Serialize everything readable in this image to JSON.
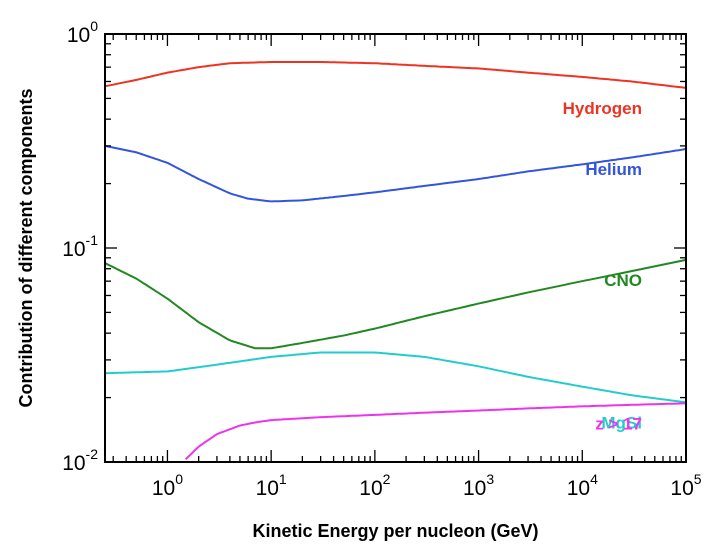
{
  "chart_data": {
    "type": "line",
    "title": "",
    "xlabel": "Kinetic Energy per nucleon (GeV)",
    "ylabel": "Contribution of different components",
    "xscale": "log",
    "yscale": "log",
    "xlim": [
      0.25,
      100000
    ],
    "ylim": [
      0.01,
      1
    ],
    "x_tick_labels": [
      {
        "base": "10",
        "exp": "0"
      },
      {
        "base": "10",
        "exp": "1"
      },
      {
        "base": "10",
        "exp": "2"
      },
      {
        "base": "10",
        "exp": "3"
      },
      {
        "base": "10",
        "exp": "4"
      },
      {
        "base": "10",
        "exp": "5"
      }
    ],
    "y_tick_labels": [
      {
        "base": "10",
        "exp": "-2"
      },
      {
        "base": "10",
        "exp": "-1"
      },
      {
        "base": "10",
        "exp": "0"
      }
    ],
    "grid": false,
    "legend": "none",
    "series": [
      {
        "name": "Hydrogen",
        "color": "#ee3322",
        "x": [
          0.25,
          0.5,
          1,
          2,
          4,
          10,
          30,
          100,
          300,
          1000,
          3000,
          10000,
          30000,
          100000
        ],
        "y": [
          0.57,
          0.61,
          0.66,
          0.7,
          0.73,
          0.74,
          0.74,
          0.73,
          0.71,
          0.69,
          0.66,
          0.63,
          0.6,
          0.56
        ]
      },
      {
        "name": "Helium",
        "color": "#3355dd",
        "x": [
          0.25,
          0.5,
          1,
          2,
          4,
          6,
          10,
          20,
          50,
          100,
          300,
          1000,
          3000,
          10000,
          30000,
          100000
        ],
        "y": [
          0.3,
          0.28,
          0.25,
          0.21,
          0.18,
          0.17,
          0.165,
          0.167,
          0.175,
          0.182,
          0.195,
          0.21,
          0.228,
          0.246,
          0.265,
          0.29
        ]
      },
      {
        "name": "CNO",
        "color": "#228822",
        "x": [
          0.25,
          0.5,
          1,
          2,
          4,
          7,
          10,
          20,
          50,
          100,
          300,
          1000,
          3000,
          10000,
          30000,
          100000
        ],
        "y": [
          0.085,
          0.072,
          0.058,
          0.045,
          0.037,
          0.034,
          0.034,
          0.036,
          0.039,
          0.042,
          0.048,
          0.055,
          0.062,
          0.07,
          0.078,
          0.088
        ]
      },
      {
        "name": "MgSi",
        "color": "#22cccc",
        "x": [
          0.25,
          1,
          3,
          10,
          30,
          100,
          300,
          1000,
          3000,
          10000,
          30000,
          100000
        ],
        "y": [
          0.026,
          0.0265,
          0.0285,
          0.031,
          0.0325,
          0.0325,
          0.031,
          0.028,
          0.025,
          0.0225,
          0.0205,
          0.019
        ]
      },
      {
        "name": "z > 17",
        "color": "#ee33ee",
        "x": [
          1.5,
          2,
          3,
          5,
          7,
          10,
          30,
          100,
          300,
          1000,
          3000,
          10000,
          30000,
          100000
        ],
        "y": [
          0.0103,
          0.0118,
          0.0135,
          0.0148,
          0.0153,
          0.0157,
          0.0162,
          0.0166,
          0.017,
          0.0174,
          0.0178,
          0.0182,
          0.0185,
          0.0188
        ]
      }
    ]
  }
}
